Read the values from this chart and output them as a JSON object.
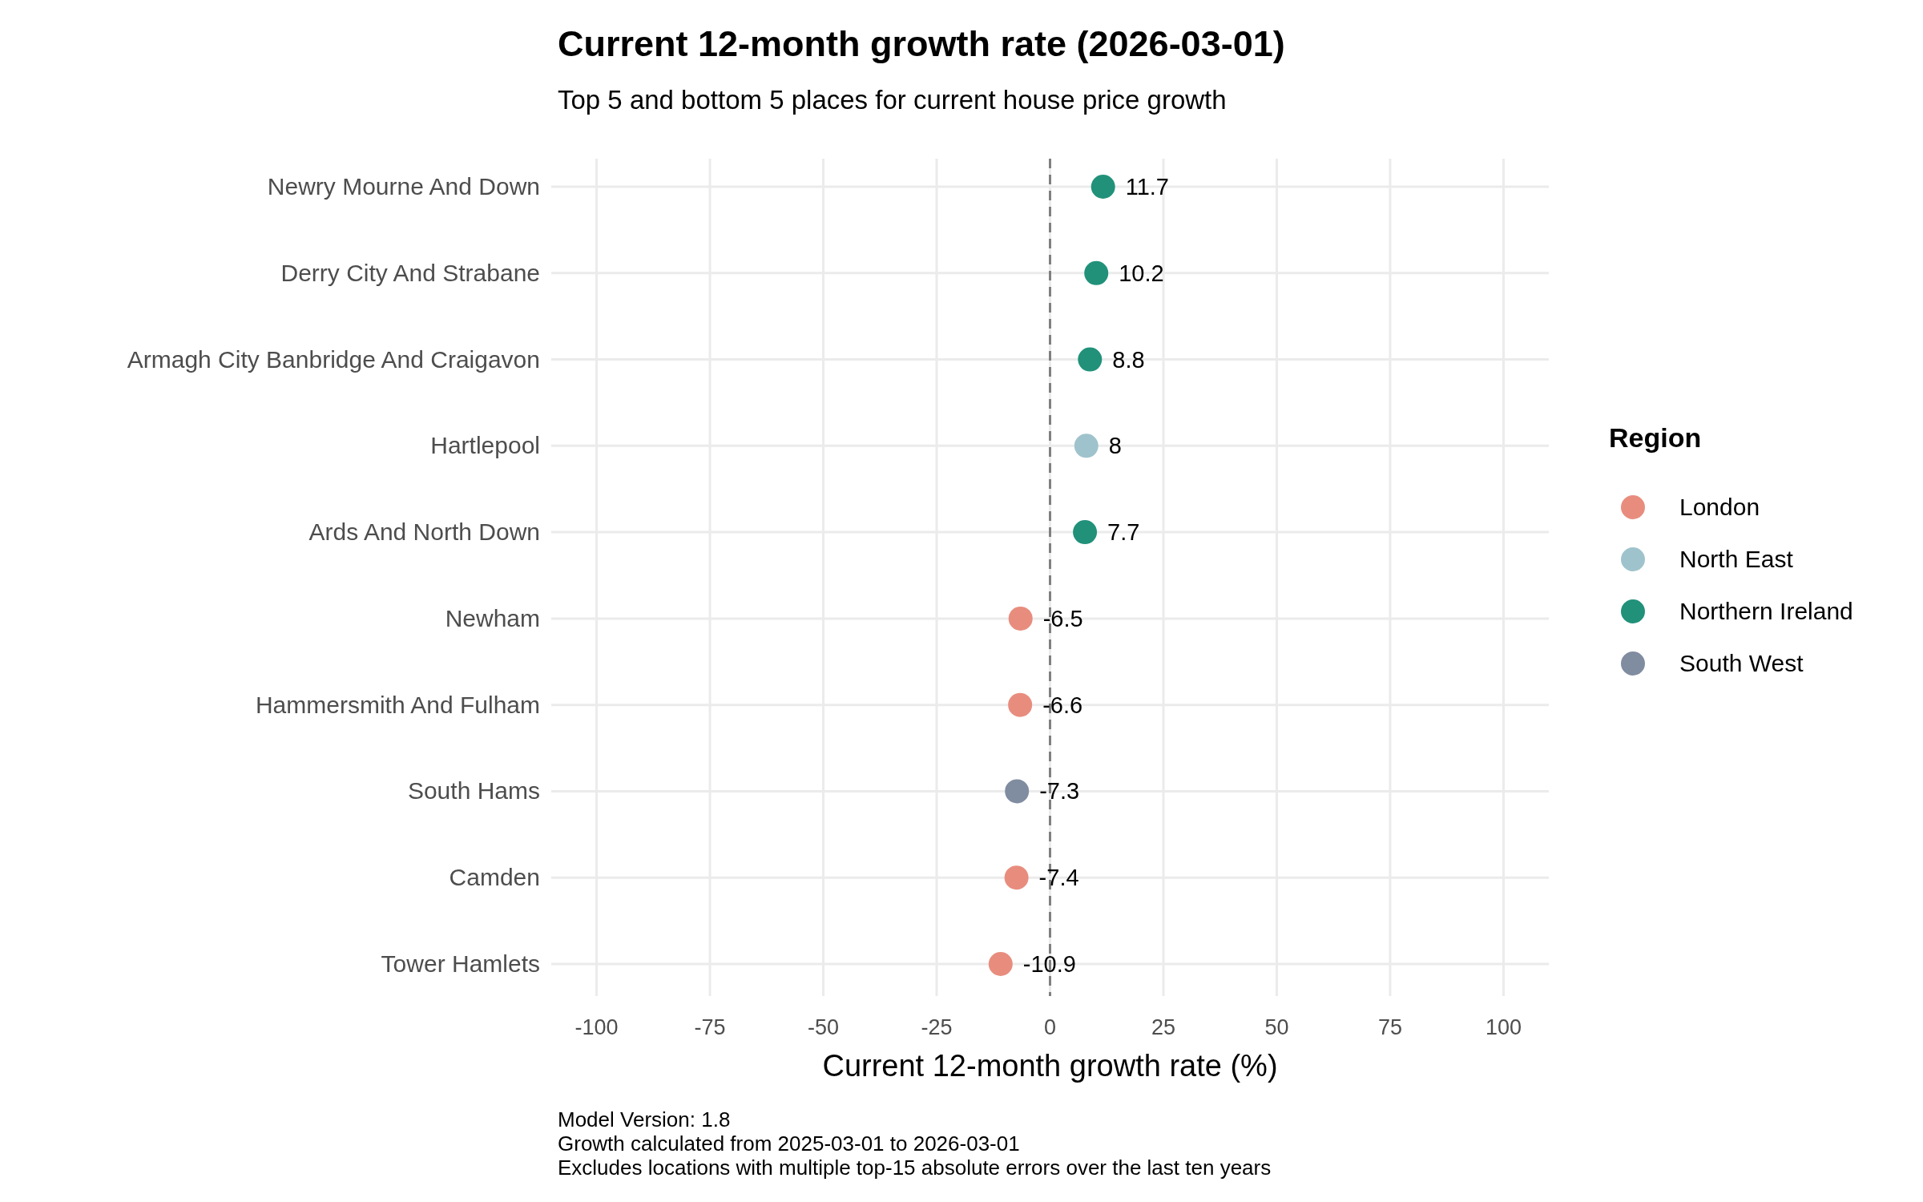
{
  "chart_data": {
    "type": "scatter",
    "orientation": "horizontal",
    "title": "Current 12-month growth rate (2026-03-01)",
    "subtitle": "Top 5 and bottom 5 places for current house price growth",
    "xlabel": "Current 12-month growth rate (%)",
    "legend_title": "Region",
    "categories": [
      "Newry Mourne And Down",
      "Derry City And Strabane",
      "Armagh City Banbridge And Craigavon",
      "Hartlepool",
      "Ards And North Down",
      "Newham",
      "Hammersmith And Fulham",
      "South Hams",
      "Camden",
      "Tower Hamlets"
    ],
    "series": [
      {
        "name": "London",
        "color": "#e88d7e",
        "values": [
          null,
          null,
          null,
          null,
          null,
          -6.5,
          -6.6,
          null,
          -7.4,
          -10.9
        ]
      },
      {
        "name": "North East",
        "color": "#9fc3cc",
        "values": [
          null,
          null,
          null,
          8,
          null,
          null,
          null,
          null,
          null,
          null
        ]
      },
      {
        "name": "Northern Ireland",
        "color": "#21917a",
        "values": [
          11.7,
          10.2,
          8.8,
          null,
          7.7,
          null,
          null,
          null,
          null,
          null
        ]
      },
      {
        "name": "South West",
        "color": "#808ca0",
        "values": [
          null,
          null,
          null,
          null,
          null,
          null,
          null,
          -7.3,
          null,
          null
        ]
      }
    ],
    "xlim": [
      -110,
      110
    ],
    "xticks": [
      -100,
      -75,
      -50,
      -25,
      0,
      25,
      50,
      75,
      100
    ],
    "grid": true,
    "legend": "right",
    "marker": "circle",
    "data_labels": true,
    "ref_lines": [
      {
        "axis": "x",
        "value": 0,
        "color": "#808080",
        "line_style": "dashed"
      }
    ],
    "annotations": [
      "Model Version: 1.8",
      "Growth calculated from 2025-03-01 to 2026-03-01",
      "Excludes locations with multiple top-15 absolute errors over the last ten years"
    ]
  }
}
